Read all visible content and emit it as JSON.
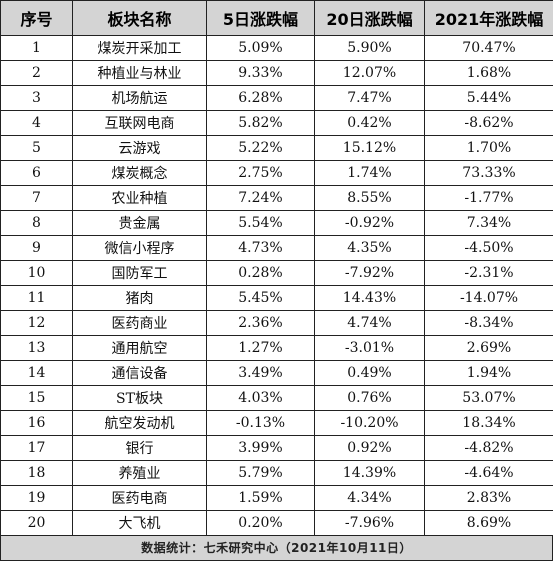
{
  "table": {
    "headers": [
      "序号",
      "板块名称",
      "5日涨跌幅",
      "20日涨跌幅",
      "2021年涨跌幅"
    ],
    "rows": [
      [
        "1",
        "煤炭开采加工",
        "5.09%",
        "5.90%",
        "70.47%"
      ],
      [
        "2",
        "种植业与林业",
        "9.33%",
        "12.07%",
        "1.68%"
      ],
      [
        "3",
        "机场航运",
        "6.28%",
        "7.47%",
        "5.44%"
      ],
      [
        "4",
        "互联网电商",
        "5.82%",
        "0.42%",
        "-8.62%"
      ],
      [
        "5",
        "云游戏",
        "5.22%",
        "15.12%",
        "1.70%"
      ],
      [
        "6",
        "煤炭概念",
        "2.75%",
        "1.74%",
        "73.33%"
      ],
      [
        "7",
        "农业种植",
        "7.24%",
        "8.55%",
        "-1.77%"
      ],
      [
        "8",
        "贵金属",
        "5.54%",
        "-0.92%",
        "7.34%"
      ],
      [
        "9",
        "微信小程序",
        "4.73%",
        "4.35%",
        "-4.50%"
      ],
      [
        "10",
        "国防军工",
        "0.28%",
        "-7.92%",
        "-2.31%"
      ],
      [
        "11",
        "猪肉",
        "5.45%",
        "14.43%",
        "-14.07%"
      ],
      [
        "12",
        "医药商业",
        "2.36%",
        "4.74%",
        "-8.34%"
      ],
      [
        "13",
        "通用航空",
        "1.27%",
        "-3.01%",
        "2.69%"
      ],
      [
        "14",
        "通信设备",
        "3.49%",
        "0.49%",
        "1.94%"
      ],
      [
        "15",
        "ST板块",
        "4.03%",
        "0.76%",
        "53.07%"
      ],
      [
        "16",
        "航空发动机",
        "-0.13%",
        "-10.20%",
        "18.34%"
      ],
      [
        "17",
        "银行",
        "3.99%",
        "0.92%",
        "-4.82%"
      ],
      [
        "18",
        "养殖业",
        "5.79%",
        "14.39%",
        "-4.64%"
      ],
      [
        "19",
        "医药电商",
        "1.59%",
        "4.34%",
        "2.83%"
      ],
      [
        "20",
        "大飞机",
        "0.20%",
        "-7.96%",
        "8.69%"
      ]
    ]
  },
  "footer": {
    "text": "数据统计：七禾研究中心（2021年10月11日）"
  }
}
